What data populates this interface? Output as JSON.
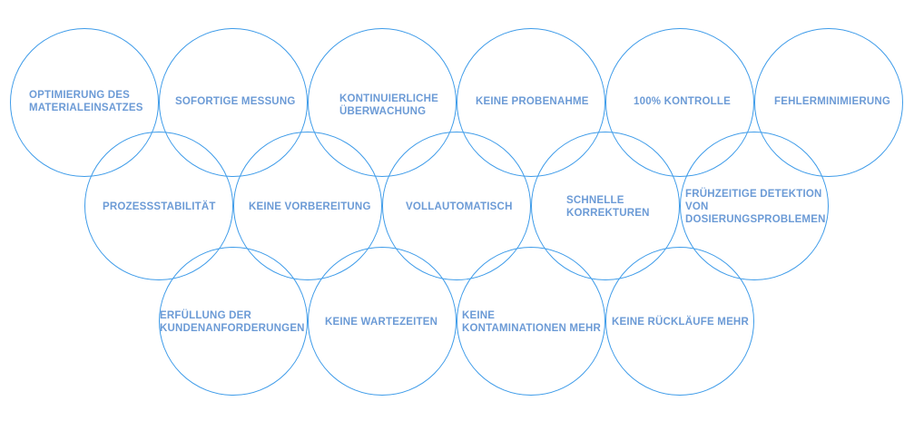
{
  "benefits": [
    {
      "id": "r1c1",
      "text": "OPTIMIERUNG DES\nMATERIALEINSATZES"
    },
    {
      "id": "r1c2",
      "text": "SOFORTIGE MESSUNG"
    },
    {
      "id": "r1c3",
      "text": "KONTINUIERLICHE\nÜBERWACHUNG"
    },
    {
      "id": "r1c4",
      "text": "KEINE PROBENAHME"
    },
    {
      "id": "r1c5",
      "text": "100% KONTROLLE"
    },
    {
      "id": "r1c6",
      "text": "FEHLERMINIMIERUNG"
    },
    {
      "id": "r2c1",
      "text": "PROZESSSTABILITÄT"
    },
    {
      "id": "r2c2",
      "text": "KEINE VORBEREITUNG"
    },
    {
      "id": "r2c3",
      "text": "VOLLAUTOMATISCH"
    },
    {
      "id": "r2c4",
      "text": "SCHNELLE\nKORREKTUREN"
    },
    {
      "id": "r2c5",
      "text": "FRÜHZEITIGE DETEKTION\nVON\nDOSIERUNGSPROBLEMEN"
    },
    {
      "id": "r3c1",
      "text": "ERFÜLLUNG DER\nKUNDENANFORDERUNGEN"
    },
    {
      "id": "r3c2",
      "text": "KEINE WARTEZEITEN"
    },
    {
      "id": "r3c3",
      "text": "KEINE\nKONTAMINATIONEN MEHR"
    },
    {
      "id": "r3c4",
      "text": "KEINE RÜCKLÄUFE MEHR"
    }
  ],
  "colors": {
    "circle_stroke": "#3d9be9",
    "label_text": "#6c9bd6",
    "background": "#ffffff"
  }
}
